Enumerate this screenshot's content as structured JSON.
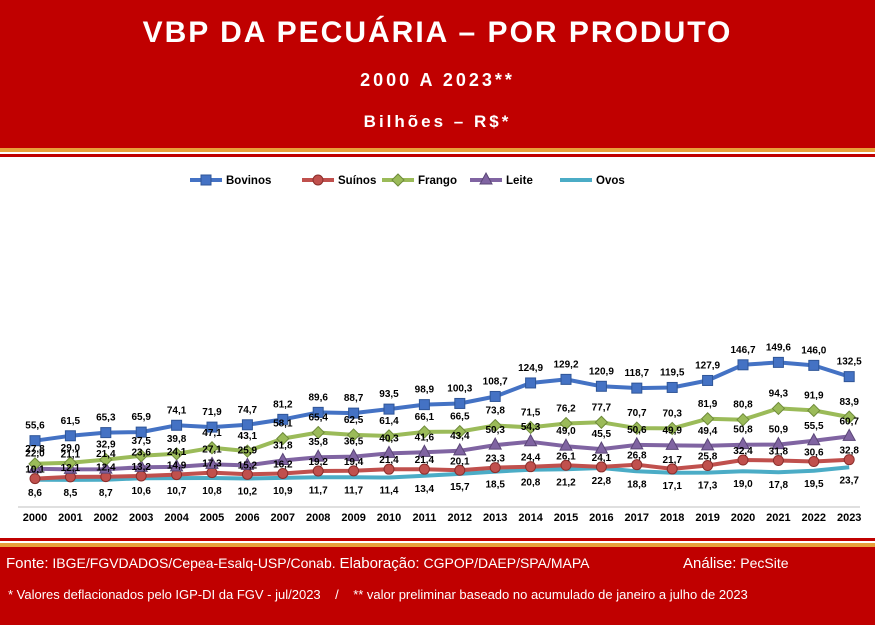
{
  "header": {
    "title": "VBP DA PECUÁRIA – POR PRODUTO",
    "subtitle": "2000 A 2023**",
    "unit": "Bilhões – R$*"
  },
  "footer": {
    "fonte_label": "Fonte:",
    "fonte_text": "IBGE/FGVDADOS/Cepea-Esalq-USP/Conab.",
    "elab_label": "Elaboração:",
    "elab_text": "CGPOP/DAEP/SPA/MAPA",
    "analise_label": "Análise:",
    "analise_text": "PecSite",
    "note1": "* Valores deflacionados pelo IGP-DI da FGV - jul/2023",
    "separator": "/",
    "note2": "** valor preliminar baseado no acumulado de janeiro a julho de 2023"
  },
  "chart_data": {
    "type": "line",
    "x": [
      "2000",
      "2001",
      "2002",
      "2003",
      "2004",
      "2005",
      "2006",
      "2007",
      "2008",
      "2009",
      "2010",
      "2011",
      "2012",
      "2013",
      "2014",
      "2015",
      "2016",
      "2017",
      "2018",
      "2019",
      "2020",
      "2021",
      "2022",
      "2023"
    ],
    "legend_position": "top",
    "grid": false,
    "series": [
      {
        "name": "Bovinos",
        "color": "#4472c4",
        "marker": "square",
        "labels_shown": true,
        "values": [
          55.6,
          61.5,
          65.3,
          65.9,
          74.1,
          71.9,
          74.7,
          81.2,
          89.6,
          88.7,
          93.5,
          98.9,
          100.3,
          108.7,
          124.9,
          129.2,
          120.9,
          118.7,
          119.5,
          127.9,
          146.7,
          149.6,
          146.0,
          132.5
        ],
        "labels": [
          "55,6",
          "61,5",
          "65,3",
          "65,9",
          "74,1",
          "71,9",
          "74,7",
          "81,2",
          "89,6",
          "88,7",
          "93,5",
          "98,9",
          "100,3",
          "108,7",
          "124,9",
          "129,2",
          "120,9",
          "118,7",
          "119,5",
          "127,9",
          "146,7",
          "149,6",
          "146,0",
          "132,5"
        ]
      },
      {
        "name": "Suínos",
        "color": "#c0504d",
        "marker": "circle",
        "labels_shown": true,
        "values": [
          10.1,
          12.1,
          12.4,
          13.2,
          14.9,
          17.3,
          15.2,
          16.2,
          19.2,
          19.4,
          21.4,
          21.4,
          20.1,
          23.3,
          24.4,
          26.1,
          24.1,
          26.8,
          21.7,
          25.8,
          32.4,
          31.8,
          30.6,
          32.8
        ],
        "labels": [
          "10,1",
          "12,1",
          "12,4",
          "13,2",
          "14,9",
          "17,3",
          "15,2",
          "16,2",
          "19,2",
          "19,4",
          "21,4",
          "21,4",
          "20,1",
          "23,3",
          "24,4",
          "26,1",
          "24,1",
          "26,8",
          "21,7",
          "25,8",
          "32,4",
          "31,8",
          "30,6",
          "32,8"
        ]
      },
      {
        "name": "Frango",
        "color": "#9bbb59",
        "marker": "diamond",
        "labels_shown": true,
        "values": [
          27.8,
          29.0,
          32.9,
          37.5,
          39.8,
          47.1,
          43.1,
          58.1,
          65.4,
          62.5,
          61.4,
          66.1,
          66.5,
          73.8,
          71.5,
          76.2,
          77.7,
          70.7,
          70.3,
          81.9,
          80.8,
          94.3,
          91.9,
          83.9
        ],
        "labels": [
          "27,8",
          "29,0",
          "32,9",
          "37,5",
          "39,8",
          "47,1",
          "43,1",
          "58,1",
          "65,4",
          "62,5",
          "61,4",
          "66,1",
          "66,5",
          "73,8",
          "71,5",
          "76,2",
          "77,7",
          "70,7",
          "70,3",
          "81,9",
          "80,8",
          "94,3",
          "91,9",
          "83,9"
        ]
      },
      {
        "name": "Leite",
        "color": "#8064a2",
        "marker": "triangle",
        "labels_shown": true,
        "values": [
          22.0,
          21.1,
          21.4,
          23.6,
          24.1,
          27.1,
          25.9,
          31.8,
          35.8,
          36.5,
          40.3,
          41.6,
          43.4,
          50.3,
          54.3,
          49.0,
          45.5,
          50.6,
          49.9,
          49.4,
          50.8,
          50.9,
          55.5,
          60.7
        ],
        "labels": [
          "22,0",
          "21,1",
          "21,4",
          "23,6",
          "24,1",
          "27,1",
          "25,9",
          "31,8",
          "35,8",
          "36,5",
          "40,3",
          "41,6",
          "43,4",
          "50,3",
          "54,3",
          "49,0",
          "45,5",
          "50,6",
          "49,9",
          "49,4",
          "50,8",
          "50,9",
          "55,5",
          "60,7"
        ]
      },
      {
        "name": "Ovos",
        "color": "#4bacc6",
        "marker": "none",
        "labels_shown": true,
        "values": [
          8.6,
          8.5,
          8.7,
          10.6,
          10.7,
          10.8,
          10.2,
          10.9,
          11.7,
          11.7,
          11.4,
          13.4,
          15.7,
          18.5,
          20.8,
          21.2,
          22.8,
          18.8,
          17.1,
          17.3,
          19.0,
          17.8,
          19.5,
          23.7
        ],
        "labels": [
          "8,6",
          "8,5",
          "8,7",
          "10,6",
          "10,7",
          "10,8",
          "10,2",
          "10,9",
          "11,7",
          "11,7",
          "11,4",
          "13,4",
          "15,7",
          "18,5",
          "20,8",
          "21,2",
          "22,8",
          "18,8",
          "17,1",
          "17,3",
          "19,0",
          "17,8",
          "19,5",
          "23,7"
        ]
      }
    ]
  }
}
